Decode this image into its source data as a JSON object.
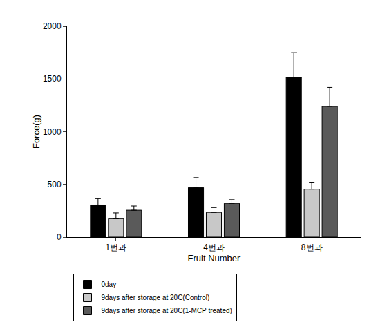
{
  "chart_data": {
    "type": "bar",
    "x_label": "Fruit Number",
    "y_label": "Force(g)",
    "categories": [
      "1번과",
      "4번과",
      "8번과"
    ],
    "series": [
      {
        "name": "0day",
        "color": "#000000",
        "values": [
          305,
          470,
          1515
        ],
        "errors": [
          60,
          95,
          235
        ]
      },
      {
        "name": "9days after storage at 20C(Control)",
        "color": "#c8c8c8",
        "values": [
          175,
          235,
          455
        ],
        "errors": [
          55,
          45,
          60
        ]
      },
      {
        "name": "9days after storage at 20C(1-MCP treated)",
        "color": "#5a5a5a",
        "values": [
          255,
          320,
          1240
        ],
        "errors": [
          40,
          35,
          180
        ]
      }
    ],
    "ylim": [
      0,
      2000
    ],
    "yticks": [
      0,
      500,
      1000,
      1500,
      2000
    ],
    "grid": false,
    "legend": "bottom left"
  }
}
